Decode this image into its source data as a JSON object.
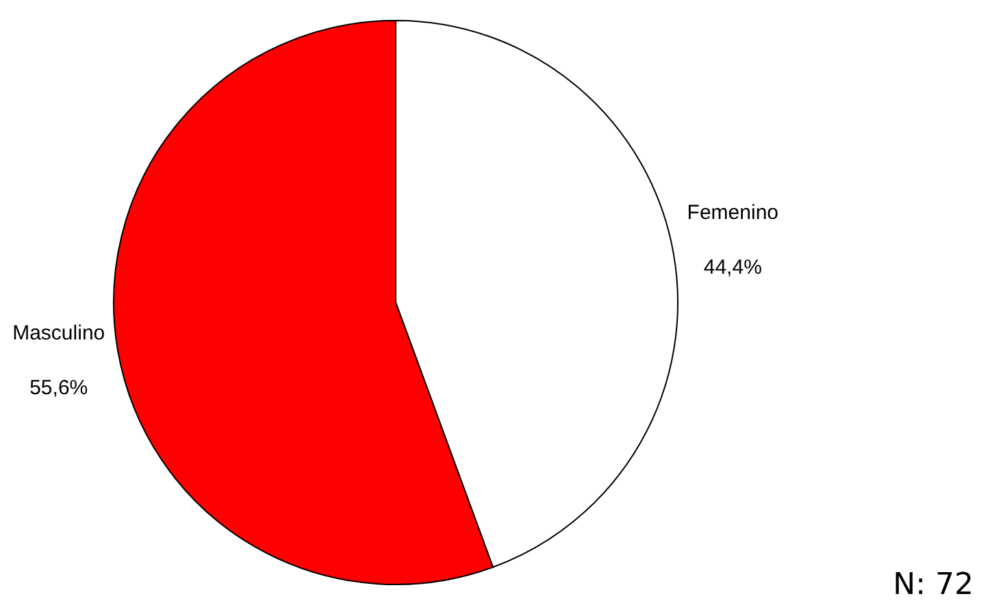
{
  "chart_data": {
    "type": "pie",
    "categories": [
      "Femenino",
      "Masculino"
    ],
    "values": [
      44.4,
      55.6
    ],
    "colors": [
      "#ffffff",
      "#ff0000"
    ],
    "value_labels": [
      "44,4%",
      "55,6%"
    ],
    "annotations": [
      "N: 72"
    ]
  }
}
